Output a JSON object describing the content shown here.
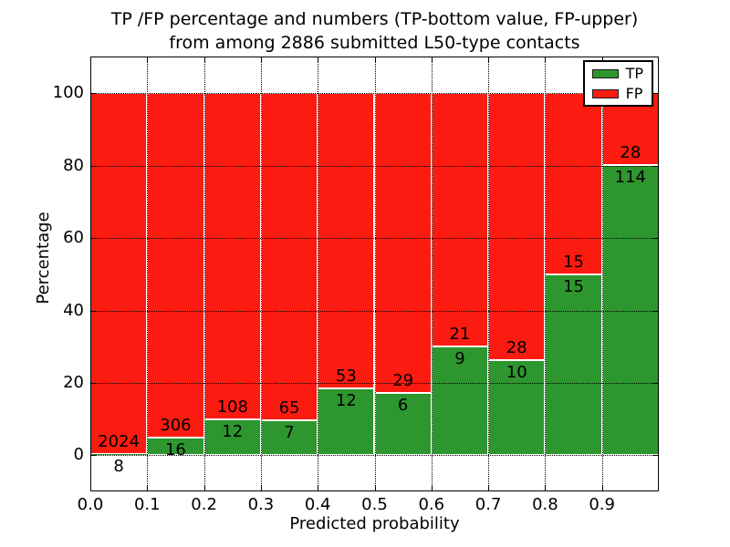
{
  "figure": {
    "title_line1": "TP /FP percentage and numbers (TP-bottom value, FP-upper)",
    "title_line2": "from among 2886 submitted L50-type contacts",
    "xlabel": "Predicted probability",
    "ylabel": "Percentage"
  },
  "legend": {
    "position": "upper right",
    "items": [
      {
        "label": "TP",
        "color": "#2e962e"
      },
      {
        "label": "FP",
        "color": "#fc1b10"
      }
    ]
  },
  "chart_data": {
    "type": "bar",
    "subtype": "stacked_percentage_histogram",
    "title": "TP /FP percentage and numbers (TP-bottom value, FP-upper) from among 2886 submitted L50-type contacts",
    "xlabel": "Predicted probability",
    "ylabel": "Percentage",
    "total_contacts": 2886,
    "grid": "dotted",
    "xlim": [
      0.0,
      1.0
    ],
    "ylim": [
      -10,
      110.2
    ],
    "x_ticks": [
      "0.0",
      "0.1",
      "0.2",
      "0.3",
      "0.4",
      "0.5",
      "0.6",
      "0.7",
      "0.8",
      "0.9"
    ],
    "y_ticks": [
      "0",
      "20",
      "40",
      "60",
      "80",
      "100"
    ],
    "colors": {
      "tp": "#2e962e",
      "fp": "#fc1b10",
      "bar_edge": "#ffffff"
    },
    "series": [
      {
        "name": "TP",
        "values": [
          8,
          16,
          12,
          7,
          12,
          6,
          9,
          10,
          15,
          114
        ]
      },
      {
        "name": "FP",
        "values": [
          2024,
          306,
          108,
          65,
          53,
          29,
          21,
          28,
          15,
          28
        ]
      }
    ],
    "bins": [
      {
        "x_start": 0.0,
        "x_end": 0.1,
        "tp": 8,
        "fp": 2024,
        "tp_pct": 0.39
      },
      {
        "x_start": 0.1,
        "x_end": 0.2,
        "tp": 16,
        "fp": 306,
        "tp_pct": 4.97
      },
      {
        "x_start": 0.2,
        "x_end": 0.3,
        "tp": 12,
        "fp": 108,
        "tp_pct": 10.0
      },
      {
        "x_start": 0.3,
        "x_end": 0.4,
        "tp": 7,
        "fp": 65,
        "tp_pct": 9.72
      },
      {
        "x_start": 0.4,
        "x_end": 0.5,
        "tp": 12,
        "fp": 53,
        "tp_pct": 18.46
      },
      {
        "x_start": 0.5,
        "x_end": 0.6,
        "tp": 6,
        "fp": 29,
        "tp_pct": 17.14
      },
      {
        "x_start": 0.6,
        "x_end": 0.7,
        "tp": 9,
        "fp": 21,
        "tp_pct": 30.0
      },
      {
        "x_start": 0.7,
        "x_end": 0.8,
        "tp": 10,
        "fp": 28,
        "tp_pct": 26.32
      },
      {
        "x_start": 0.8,
        "x_end": 0.9,
        "tp": 15,
        "fp": 15,
        "tp_pct": 50.0
      },
      {
        "x_start": 0.9,
        "x_end": 1.0,
        "tp": 114,
        "fp": 28,
        "tp_pct": 80.28
      }
    ]
  }
}
